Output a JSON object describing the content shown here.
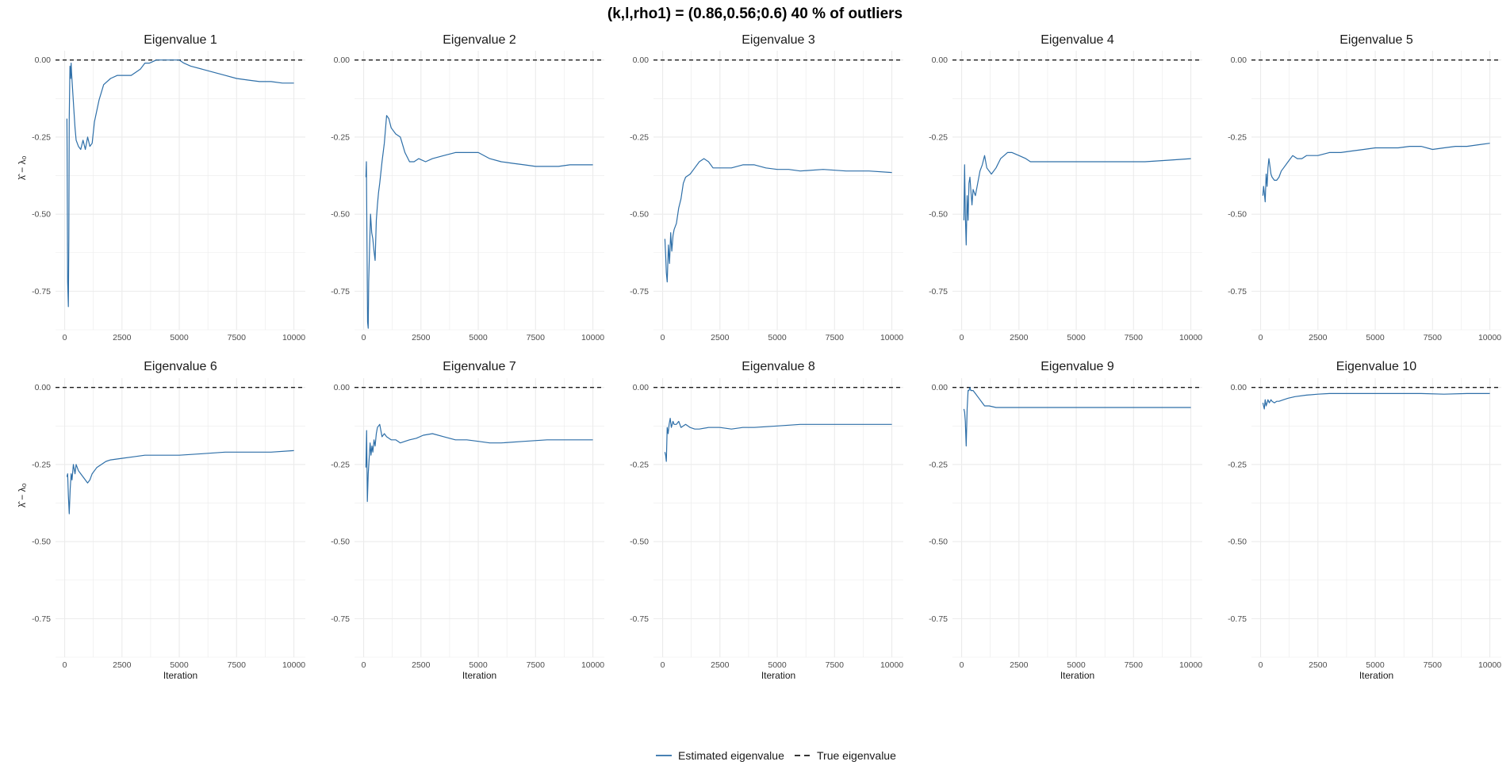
{
  "title": "(k,l,rho1) = (0.86,0.56;0.6) 40 % of outliers",
  "colors": {
    "estimated": "#2e6fa8",
    "true": "#1a1a1a",
    "grid": "#ebebeb"
  },
  "legend": {
    "estimated": "Estimated eigenvalue",
    "true": "True eigenvalue",
    "position": "bottom"
  },
  "axis_labels": {
    "x": "Iteration",
    "y": "λ̂ − λ₀"
  },
  "chart_data": {
    "type": "line",
    "layout": "facets 2x5, shared scales",
    "xlabel": "Iteration",
    "ylabel": "λ̂ − λ₀",
    "xlim": [
      -400,
      10500
    ],
    "ylim": [
      -0.875,
      0.03
    ],
    "xticks": [
      0,
      2500,
      5000,
      7500,
      10000
    ],
    "xtick_labels": [
      "0",
      "2500",
      "5000",
      "7500",
      "10000"
    ],
    "yticks": [
      0,
      -0.25,
      -0.5,
      -0.75
    ],
    "ytick_labels": [
      "0.00",
      "-0.25",
      "-0.50",
      "-0.75"
    ],
    "reference_line": {
      "y": 0,
      "name": "True eigenvalue"
    },
    "grid": true,
    "panels": [
      {
        "title": "Eigenvalue 1",
        "x": [
          100,
          110,
          130,
          160,
          180,
          200,
          230,
          260,
          280,
          300,
          340,
          400,
          450,
          500,
          600,
          700,
          800,
          900,
          1000,
          1100,
          1200,
          1300,
          1500,
          1700,
          2000,
          2300,
          2600,
          2900,
          3100,
          3300,
          3500,
          3700,
          4000,
          4500,
          5000,
          5200,
          5500,
          6000,
          6500,
          7000,
          7500,
          8000,
          8500,
          9000,
          9500,
          10000
        ],
        "y": [
          -0.19,
          -0.33,
          -0.72,
          -0.8,
          -0.58,
          -0.19,
          -0.02,
          -0.06,
          -0.01,
          -0.04,
          -0.09,
          -0.16,
          -0.22,
          -0.26,
          -0.28,
          -0.29,
          -0.26,
          -0.29,
          -0.25,
          -0.28,
          -0.27,
          -0.2,
          -0.13,
          -0.08,
          -0.06,
          -0.05,
          -0.05,
          -0.05,
          -0.04,
          -0.03,
          -0.01,
          -0.01,
          0.0,
          0.0,
          0.0,
          -0.01,
          -0.02,
          -0.03,
          -0.04,
          -0.05,
          -0.06,
          -0.065,
          -0.07,
          -0.07,
          -0.075,
          -0.075
        ]
      },
      {
        "title": "Eigenvalue 2",
        "x": [
          100,
          120,
          140,
          170,
          200,
          220,
          260,
          300,
          350,
          400,
          450,
          500,
          550,
          600,
          650,
          700,
          800,
          900,
          1000,
          1100,
          1200,
          1400,
          1600,
          1800,
          2000,
          2200,
          2400,
          2700,
          3000,
          3500,
          4000,
          4500,
          5000,
          5500,
          6000,
          6500,
          7000,
          7500,
          8000,
          8500,
          9000,
          9500,
          10000
        ],
        "y": [
          -0.38,
          -0.33,
          -0.55,
          -0.85,
          -0.87,
          -0.72,
          -0.6,
          -0.5,
          -0.56,
          -0.58,
          -0.62,
          -0.65,
          -0.52,
          -0.47,
          -0.43,
          -0.4,
          -0.33,
          -0.27,
          -0.18,
          -0.19,
          -0.22,
          -0.24,
          -0.25,
          -0.3,
          -0.33,
          -0.33,
          -0.32,
          -0.33,
          -0.32,
          -0.31,
          -0.3,
          -0.3,
          -0.3,
          -0.32,
          -0.33,
          -0.335,
          -0.34,
          -0.345,
          -0.345,
          -0.345,
          -0.34,
          -0.34,
          -0.34
        ]
      },
      {
        "title": "Eigenvalue 3",
        "x": [
          100,
          130,
          160,
          200,
          250,
          300,
          350,
          400,
          450,
          500,
          600,
          700,
          800,
          900,
          1000,
          1200,
          1400,
          1600,
          1800,
          2000,
          2200,
          2500,
          3000,
          3500,
          4000,
          4500,
          5000,
          5500,
          6000,
          7000,
          8000,
          9000,
          10000
        ],
        "y": [
          -0.58,
          -0.63,
          -0.69,
          -0.72,
          -0.6,
          -0.66,
          -0.56,
          -0.62,
          -0.57,
          -0.55,
          -0.53,
          -0.48,
          -0.45,
          -0.4,
          -0.38,
          -0.37,
          -0.35,
          -0.33,
          -0.32,
          -0.33,
          -0.35,
          -0.35,
          -0.35,
          -0.34,
          -0.34,
          -0.35,
          -0.355,
          -0.355,
          -0.36,
          -0.355,
          -0.36,
          -0.36,
          -0.365
        ]
      },
      {
        "title": "Eigenvalue 4",
        "x": [
          100,
          130,
          160,
          200,
          240,
          280,
          320,
          360,
          400,
          450,
          500,
          600,
          700,
          800,
          900,
          1000,
          1100,
          1300,
          1500,
          1700,
          2000,
          2200,
          2500,
          2800,
          3000,
          3500,
          4000,
          5000,
          6000,
          7000,
          8000,
          9000,
          10000
        ],
        "y": [
          -0.52,
          -0.34,
          -0.5,
          -0.6,
          -0.44,
          -0.52,
          -0.4,
          -0.38,
          -0.42,
          -0.47,
          -0.42,
          -0.44,
          -0.4,
          -0.36,
          -0.34,
          -0.31,
          -0.35,
          -0.37,
          -0.35,
          -0.32,
          -0.3,
          -0.3,
          -0.31,
          -0.32,
          -0.33,
          -0.33,
          -0.33,
          -0.33,
          -0.33,
          -0.33,
          -0.33,
          -0.325,
          -0.32
        ]
      },
      {
        "title": "Eigenvalue 5",
        "x": [
          100,
          130,
          160,
          200,
          240,
          280,
          320,
          360,
          400,
          450,
          500,
          600,
          700,
          800,
          900,
          1000,
          1200,
          1400,
          1600,
          1800,
          2000,
          2500,
          3000,
          3500,
          4000,
          4500,
          5000,
          5500,
          6000,
          6500,
          7000,
          7500,
          8000,
          8500,
          9000,
          9500,
          10000
        ],
        "y": [
          -0.44,
          -0.41,
          -0.43,
          -0.46,
          -0.37,
          -0.41,
          -0.35,
          -0.32,
          -0.34,
          -0.37,
          -0.38,
          -0.39,
          -0.39,
          -0.38,
          -0.36,
          -0.35,
          -0.33,
          -0.31,
          -0.32,
          -0.32,
          -0.31,
          -0.31,
          -0.3,
          -0.3,
          -0.295,
          -0.29,
          -0.285,
          -0.285,
          -0.285,
          -0.28,
          -0.28,
          -0.29,
          -0.285,
          -0.28,
          -0.28,
          -0.275,
          -0.27
        ]
      },
      {
        "title": "Eigenvalue 6",
        "x": [
          100,
          130,
          160,
          200,
          240,
          280,
          320,
          380,
          450,
          500,
          600,
          700,
          800,
          900,
          1000,
          1100,
          1200,
          1400,
          1600,
          1800,
          2000,
          2500,
          3000,
          3500,
          4000,
          5000,
          6000,
          7000,
          8000,
          9000,
          10000
        ],
        "y": [
          -0.29,
          -0.28,
          -0.35,
          -0.41,
          -0.33,
          -0.28,
          -0.3,
          -0.25,
          -0.28,
          -0.25,
          -0.27,
          -0.28,
          -0.29,
          -0.3,
          -0.31,
          -0.3,
          -0.28,
          -0.26,
          -0.25,
          -0.24,
          -0.235,
          -0.23,
          -0.225,
          -0.22,
          -0.22,
          -0.22,
          -0.215,
          -0.21,
          -0.21,
          -0.21,
          -0.205
        ]
      },
      {
        "title": "Eigenvalue 7",
        "x": [
          100,
          130,
          160,
          200,
          240,
          280,
          320,
          360,
          400,
          450,
          500,
          550,
          600,
          700,
          800,
          900,
          1000,
          1200,
          1400,
          1600,
          1800,
          2000,
          2300,
          2600,
          3000,
          3500,
          4000,
          4500,
          5000,
          5500,
          6000,
          7000,
          8000,
          9000,
          10000
        ],
        "y": [
          -0.26,
          -0.14,
          -0.37,
          -0.28,
          -0.23,
          -0.18,
          -0.22,
          -0.19,
          -0.21,
          -0.17,
          -0.19,
          -0.15,
          -0.13,
          -0.12,
          -0.16,
          -0.15,
          -0.16,
          -0.17,
          -0.17,
          -0.18,
          -0.175,
          -0.17,
          -0.165,
          -0.155,
          -0.15,
          -0.16,
          -0.17,
          -0.17,
          -0.175,
          -0.18,
          -0.18,
          -0.175,
          -0.17,
          -0.17,
          -0.17
        ]
      },
      {
        "title": "Eigenvalue 8",
        "x": [
          100,
          130,
          160,
          200,
          240,
          280,
          330,
          380,
          450,
          500,
          600,
          700,
          800,
          1000,
          1200,
          1400,
          1600,
          2000,
          2500,
          3000,
          3500,
          4000,
          5000,
          6000,
          7000,
          8000,
          9000,
          10000
        ],
        "y": [
          -0.21,
          -0.22,
          -0.24,
          -0.13,
          -0.15,
          -0.12,
          -0.1,
          -0.13,
          -0.11,
          -0.12,
          -0.12,
          -0.11,
          -0.13,
          -0.12,
          -0.13,
          -0.135,
          -0.135,
          -0.13,
          -0.13,
          -0.135,
          -0.13,
          -0.13,
          -0.125,
          -0.12,
          -0.12,
          -0.12,
          -0.12,
          -0.12
        ]
      },
      {
        "title": "Eigenvalue 9",
        "x": [
          100,
          130,
          160,
          200,
          240,
          280,
          320,
          360,
          400,
          450,
          500,
          600,
          700,
          800,
          900,
          1000,
          1200,
          1500,
          2000,
          3000,
          4000,
          5000,
          6000,
          7000,
          8000,
          9000,
          10000
        ],
        "y": [
          -0.07,
          -0.08,
          -0.11,
          -0.19,
          -0.07,
          -0.01,
          -0.01,
          0.0,
          -0.01,
          -0.01,
          -0.01,
          -0.02,
          -0.03,
          -0.04,
          -0.05,
          -0.06,
          -0.06,
          -0.065,
          -0.065,
          -0.065,
          -0.065,
          -0.065,
          -0.065,
          -0.065,
          -0.065,
          -0.065,
          -0.065
        ]
      },
      {
        "title": "Eigenvalue 10",
        "x": [
          100,
          130,
          160,
          200,
          240,
          280,
          320,
          380,
          450,
          500,
          600,
          700,
          800,
          1000,
          1200,
          1500,
          2000,
          2500,
          3000,
          3500,
          4000,
          5000,
          6000,
          7000,
          8000,
          9000,
          10000
        ],
        "y": [
          -0.05,
          -0.06,
          -0.07,
          -0.04,
          -0.06,
          -0.05,
          -0.04,
          -0.05,
          -0.04,
          -0.045,
          -0.05,
          -0.045,
          -0.045,
          -0.04,
          -0.035,
          -0.03,
          -0.025,
          -0.022,
          -0.02,
          -0.02,
          -0.02,
          -0.02,
          -0.02,
          -0.02,
          -0.022,
          -0.02,
          -0.02
        ]
      }
    ]
  }
}
